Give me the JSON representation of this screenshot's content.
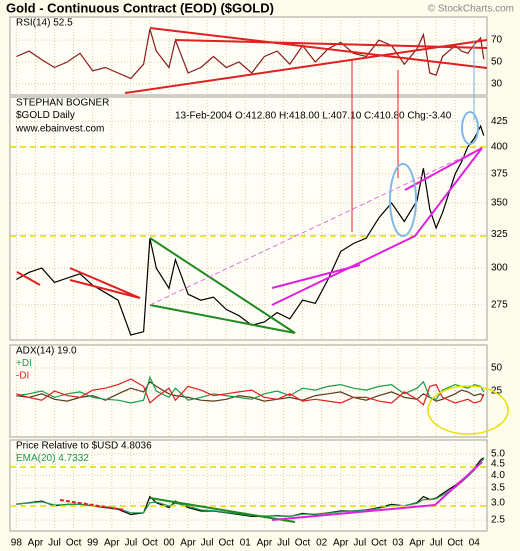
{
  "header": {
    "title": "Gold - Continuous Contract (EOD) ($GOLD)",
    "source": "© StockCharts.com",
    "author": "STEPHAN BOGNER",
    "website": "www.ebainvest.com",
    "quote": "13-Feb-2004 O:412.80 H:418.00 L:407.10 C:410.80 Chg:-3.40"
  },
  "chart_data": [
    {
      "type": "line",
      "xlim": [
        -1,
        74
      ],
      "ylim": [
        20,
        91
      ],
      "yticks": [
        70,
        50,
        30
      ],
      "x": [
        0,
        2,
        4,
        6,
        8,
        10,
        12,
        14,
        16,
        18,
        20,
        21,
        22,
        24,
        25,
        27,
        29,
        31,
        33,
        35,
        37,
        39,
        41,
        43,
        45,
        47,
        49,
        51,
        53,
        55,
        57,
        59,
        61,
        63,
        64,
        65,
        66,
        67,
        69,
        70,
        71,
        72,
        73,
        73.5
      ],
      "series": [
        {
          "name": "RSI(14) 52.5",
          "color": "#8b1a1a",
          "values": [
            55,
            60,
            52,
            45,
            50,
            58,
            42,
            45,
            40,
            35,
            48,
            80,
            60,
            45,
            70,
            40,
            45,
            55,
            45,
            50,
            40,
            55,
            60,
            48,
            65,
            50,
            62,
            68,
            58,
            55,
            70,
            65,
            48,
            62,
            75,
            40,
            38,
            55,
            65,
            60,
            58,
            66,
            72,
            52.5
          ]
        }
      ]
    },
    {
      "type": "line",
      "xlim": [
        -1,
        74
      ],
      "ylim": [
        253,
        450
      ],
      "log": true,
      "yticks": [
        425,
        400,
        375,
        350,
        325,
        300,
        275
      ],
      "x": [
        0,
        2,
        4,
        6,
        8,
        10,
        12,
        14,
        16,
        18,
        20,
        21,
        22,
        24,
        25,
        27,
        29,
        31,
        33,
        35,
        37,
        39,
        41,
        43,
        45,
        47,
        49,
        51,
        53,
        55,
        57,
        59,
        61,
        63,
        64,
        65,
        66,
        67,
        69,
        70,
        71,
        72,
        73,
        73.5
      ],
      "series": [
        {
          "name": "$GOLD Daily",
          "color": "#000000",
          "values": [
            292,
            297,
            300,
            290,
            293,
            296,
            288,
            283,
            278,
            256,
            258,
            322,
            300,
            286,
            306,
            282,
            278,
            280,
            272,
            268,
            262,
            264,
            270,
            266,
            278,
            276,
            292,
            312,
            318,
            322,
            338,
            350,
            335,
            352,
            380,
            345,
            330,
            342,
            375,
            386,
            400,
            408,
            420,
            410.8
          ]
        }
      ]
    },
    {
      "type": "line",
      "xlim": [
        -1,
        74
      ],
      "ylim": [
        -25,
        75
      ],
      "yticks": [
        50,
        25
      ],
      "x": [
        0,
        2,
        4,
        6,
        8,
        10,
        12,
        14,
        16,
        18,
        20,
        21,
        22,
        24,
        25,
        27,
        29,
        31,
        33,
        35,
        37,
        39,
        41,
        43,
        45,
        47,
        49,
        51,
        53,
        55,
        57,
        59,
        61,
        63,
        64,
        65,
        66,
        67,
        69,
        70,
        71,
        72,
        73,
        73.5
      ],
      "series": [
        {
          "name": "ADX(14) 19.0",
          "color": "#5a3a1a",
          "values": [
            20,
            18,
            22,
            16,
            14,
            18,
            20,
            15,
            22,
            28,
            24,
            35,
            30,
            22,
            20,
            18,
            15,
            14,
            16,
            20,
            18,
            14,
            16,
            18,
            15,
            20,
            22,
            24,
            18,
            15,
            20,
            24,
            18,
            16,
            22,
            18,
            14,
            16,
            22,
            26,
            24,
            20,
            22,
            19.0
          ]
        },
        {
          "name": "+DI",
          "color": "#1a9a4a",
          "values": [
            20,
            22,
            25,
            18,
            22,
            24,
            18,
            16,
            15,
            12,
            15,
            40,
            25,
            18,
            28,
            15,
            18,
            22,
            20,
            18,
            16,
            22,
            25,
            20,
            28,
            26,
            30,
            32,
            28,
            26,
            30,
            32,
            22,
            28,
            35,
            18,
            16,
            26,
            32,
            30,
            28,
            32,
            30,
            24
          ]
        },
        {
          "name": "-DI",
          "color": "#e02020",
          "values": [
            22,
            18,
            15,
            25,
            20,
            18,
            26,
            28,
            32,
            38,
            30,
            12,
            18,
            28,
            15,
            30,
            26,
            20,
            22,
            24,
            26,
            18,
            16,
            22,
            14,
            16,
            14,
            12,
            18,
            18,
            14,
            12,
            24,
            16,
            10,
            30,
            32,
            18,
            12,
            14,
            16,
            12,
            14,
            22
          ]
        }
      ]
    },
    {
      "type": "line",
      "xlim": [
        -1,
        74
      ],
      "ylim": [
        2.23,
        5.79
      ],
      "log": true,
      "yticks": [
        {
          "value": 5,
          "label": "5.0"
        },
        4.5,
        {
          "value": 4,
          "label": "4.0"
        },
        3.5,
        {
          "value": 3,
          "label": "3.0"
        },
        2.5
      ],
      "x": [
        0,
        2,
        4,
        6,
        8,
        10,
        12,
        14,
        16,
        18,
        20,
        21,
        22,
        24,
        25,
        27,
        29,
        31,
        33,
        35,
        37,
        39,
        41,
        43,
        45,
        47,
        49,
        51,
        53,
        55,
        57,
        59,
        61,
        63,
        64,
        65,
        66,
        67,
        69,
        70,
        71,
        72,
        73,
        73.5
      ],
      "xticks": [
        {
          "value": 0,
          "label": "98"
        },
        {
          "value": 3,
          "label": "Apr"
        },
        {
          "value": 6,
          "label": "Jul"
        },
        {
          "value": 9,
          "label": "Oct"
        },
        {
          "value": 12,
          "label": "99"
        },
        {
          "value": 15,
          "label": "Apr"
        },
        {
          "value": 18,
          "label": "Jul"
        },
        {
          "value": 21,
          "label": "Oct"
        },
        {
          "value": 24,
          "label": "00"
        },
        {
          "value": 27,
          "label": "Apr"
        },
        {
          "value": 30,
          "label": "Jul"
        },
        {
          "value": 33,
          "label": "Oct"
        },
        {
          "value": 36,
          "label": "01"
        },
        {
          "value": 39,
          "label": "Apr"
        },
        {
          "value": 42,
          "label": "Jul"
        },
        {
          "value": 45,
          "label": "Oct"
        },
        {
          "value": 48,
          "label": "02"
        },
        {
          "value": 51,
          "label": "Apr"
        },
        {
          "value": 54,
          "label": "Jul"
        },
        {
          "value": 57,
          "label": "Oct"
        },
        {
          "value": 60,
          "label": "03"
        },
        {
          "value": 63,
          "label": "Apr"
        },
        {
          "value": 66,
          "label": "Jul"
        },
        {
          "value": 69,
          "label": "Oct"
        },
        {
          "value": 72,
          "label": "04"
        }
      ],
      "series": [
        {
          "name": "Price Relative to $USD 4.8036",
          "color": "#000000",
          "values": [
            2.95,
            3.0,
            3.05,
            2.9,
            2.95,
            2.95,
            2.9,
            2.85,
            2.8,
            2.65,
            2.7,
            3.2,
            3.0,
            2.85,
            3.05,
            2.85,
            2.75,
            2.75,
            2.7,
            2.65,
            2.6,
            2.6,
            2.62,
            2.6,
            2.68,
            2.65,
            2.7,
            2.75,
            2.75,
            2.78,
            2.85,
            2.95,
            2.9,
            3.0,
            3.2,
            3.1,
            3.15,
            3.3,
            3.6,
            3.8,
            4.0,
            4.3,
            4.7,
            4.8036
          ]
        },
        {
          "name": "EMA(20) 4.7332",
          "color": "#1a9a4a",
          "values": [
            2.96,
            2.99,
            3.03,
            2.93,
            2.94,
            2.95,
            2.91,
            2.87,
            2.82,
            2.7,
            2.7,
            3.0,
            3.02,
            2.9,
            2.98,
            2.9,
            2.78,
            2.76,
            2.71,
            2.67,
            2.62,
            2.61,
            2.61,
            2.6,
            2.66,
            2.66,
            2.69,
            2.73,
            2.75,
            2.77,
            2.83,
            2.92,
            2.91,
            2.98,
            3.1,
            3.1,
            3.13,
            3.25,
            3.52,
            3.72,
            3.95,
            4.22,
            4.6,
            4.7332
          ]
        }
      ]
    }
  ]
}
